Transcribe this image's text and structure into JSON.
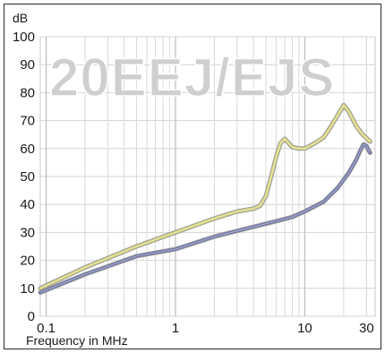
{
  "chart_data": {
    "type": "line",
    "title": "",
    "xlabel": "Frequency in MHz",
    "ylabel": "dB",
    "xscale": "log",
    "xlim": [
      0.09,
      35
    ],
    "ylim": [
      0,
      100
    ],
    "grid": true,
    "xticks": [
      {
        "value": 0.1,
        "label": "0.1"
      },
      {
        "value": 1,
        "label": "1"
      },
      {
        "value": 10,
        "label": "10"
      },
      {
        "value": 30,
        "label": "30"
      }
    ],
    "yticks": [
      0,
      10,
      20,
      30,
      40,
      50,
      60,
      70,
      80,
      90,
      100
    ],
    "watermark": "20EEJ/EJS",
    "series": [
      {
        "color": "#d8d47a",
        "points": [
          [
            0.09,
            10
          ],
          [
            0.2,
            17.5
          ],
          [
            0.5,
            25
          ],
          [
            1,
            30
          ],
          [
            2,
            35
          ],
          [
            3,
            37.5
          ],
          [
            4,
            38.5
          ],
          [
            4.5,
            39.5
          ],
          [
            5,
            43
          ],
          [
            5.5,
            50
          ],
          [
            6,
            57
          ],
          [
            6.5,
            62
          ],
          [
            7,
            63.5
          ],
          [
            7.5,
            62
          ],
          [
            8,
            60.5
          ],
          [
            9,
            60
          ],
          [
            10,
            60
          ],
          [
            11,
            61
          ],
          [
            12,
            62
          ],
          [
            14,
            64
          ],
          [
            16,
            68
          ],
          [
            18,
            72
          ],
          [
            20,
            75.5
          ],
          [
            22,
            73
          ],
          [
            25,
            68
          ],
          [
            28,
            65
          ],
          [
            32,
            62.5
          ]
        ]
      },
      {
        "color": "#6c73a8",
        "points": [
          [
            0.09,
            8.5
          ],
          [
            0.2,
            15
          ],
          [
            0.5,
            21.5
          ],
          [
            1,
            24
          ],
          [
            2,
            28.5
          ],
          [
            4,
            32
          ],
          [
            6,
            34
          ],
          [
            8,
            35.5
          ],
          [
            10,
            37.5
          ],
          [
            14,
            41
          ],
          [
            18,
            46
          ],
          [
            22,
            51.5
          ],
          [
            25,
            56
          ],
          [
            27,
            59.5
          ],
          [
            28.5,
            61.5
          ],
          [
            30,
            61
          ],
          [
            31,
            59.5
          ],
          [
            32,
            58.5
          ]
        ]
      }
    ]
  }
}
